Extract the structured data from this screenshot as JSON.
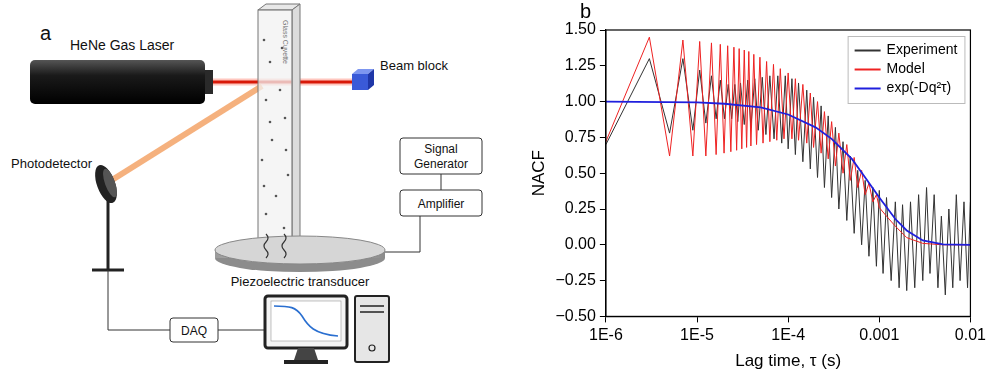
{
  "diagram": {
    "letter": "a",
    "laser": "HeNe Gas Laser",
    "beam_block": "Beam block",
    "cuvette": "Glass Cuvette",
    "detector": "Photodetector",
    "transducer": "Piezoelectric transducer",
    "signal_generator": "Signal Generator",
    "amplifier": "Amplifier",
    "daq": "DAQ"
  },
  "chart_data": {
    "type": "line",
    "panel_label": "b",
    "x_label": "Lag time, τ (s)",
    "y_label": "NACF",
    "log": "x",
    "grid": false,
    "legend": "upper right",
    "xlim": [
      1e-06,
      0.01
    ],
    "xticks": [
      {
        "value": 1e-06,
        "label": "1E-6"
      },
      {
        "value": 1e-05,
        "label": "1E-5"
      },
      {
        "value": 0.0001,
        "label": "1E-4"
      },
      0.001,
      0.01
    ],
    "ylim": [
      -0.5,
      1.5
    ],
    "yticks": [
      {
        "value": -0.5,
        "label": "−0.50"
      },
      {
        "value": -0.25,
        "label": "−0.25"
      },
      {
        "value": 0,
        "label": "0.00"
      },
      {
        "value": 0.25,
        "label": "0.25"
      },
      {
        "value": 0.5,
        "label": "0.50"
      },
      {
        "value": 0.75,
        "label": "0.75"
      },
      {
        "value": 1,
        "label": "1.00"
      },
      {
        "value": 1.25,
        "label": "1.25"
      },
      {
        "value": 1.5,
        "label": "1.50"
      }
    ],
    "series": [
      {
        "name": "Experiment",
        "color": "#333333",
        "x": [
          1e-06,
          3e-06,
          5e-06,
          7e-06,
          9e-06,
          1.07e-05,
          1.25e-05,
          1.44e-05,
          1.62e-05,
          1.8e-05,
          2e-05,
          2.2e-05,
          2.4e-05,
          2.6e-05,
          2.8e-05,
          3e-05,
          3.3e-05,
          3.6e-05,
          3.9e-05,
          4.3e-05,
          4.7e-05,
          5.2e-05,
          5.7e-05,
          6.3e-05,
          7e-05,
          7.7e-05,
          8.5e-05,
          9.3e-05,
          0.0001,
          0.00011,
          0.00012,
          0.00013,
          0.000145,
          0.00016,
          0.000175,
          0.00019,
          0.00021,
          0.00023,
          0.00025,
          0.000275,
          0.0003,
          0.00033,
          0.00036,
          0.0004,
          0.00044,
          0.00048,
          0.00053,
          0.00058,
          0.00064,
          0.0007,
          0.00077,
          0.00085,
          0.00093,
          0.001,
          0.0011,
          0.0012,
          0.00135,
          0.0015,
          0.00165,
          0.0018,
          0.002,
          0.0022,
          0.00245,
          0.0027,
          0.003,
          0.0033,
          0.0036,
          0.004,
          0.0044,
          0.0048,
          0.0053,
          0.0058,
          0.0064,
          0.007,
          0.0077,
          0.0085,
          0.0093,
          0.01
        ],
        "values": [
          0.7,
          1.3,
          0.78,
          1.3,
          0.8,
          1.22,
          0.85,
          1.18,
          0.88,
          1.15,
          0.88,
          1.12,
          0.88,
          1.12,
          0.86,
          1.13,
          0.84,
          1.15,
          0.82,
          1.16,
          0.8,
          1.17,
          0.77,
          1.18,
          0.74,
          1.18,
          0.71,
          1.18,
          0.67,
          1.16,
          0.63,
          1.13,
          0.58,
          1.08,
          0.53,
          1.03,
          0.47,
          0.97,
          0.4,
          0.9,
          0.33,
          0.82,
          0.25,
          0.72,
          0.17,
          0.62,
          0.08,
          0.52,
          0.0,
          0.45,
          -0.08,
          0.4,
          -0.15,
          0.38,
          -0.2,
          0.33,
          -0.25,
          0.3,
          -0.3,
          0.28,
          -0.32,
          0.3,
          -0.3,
          0.35,
          -0.25,
          0.4,
          -0.2,
          0.35,
          -0.3,
          0.2,
          -0.35,
          0.25,
          -0.3,
          0.35,
          -0.25,
          0.3,
          -0.3,
          0.3
        ]
      },
      {
        "name": "Model",
        "color": "#ee2222",
        "x": [
          1e-06,
          3e-06,
          5e-06,
          7e-06,
          9e-06,
          1.07e-05,
          1.25e-05,
          1.44e-05,
          1.62e-05,
          1.8e-05,
          1.98e-05,
          2.17e-05,
          2.35e-05,
          2.54e-05,
          2.72e-05,
          2.9e-05,
          3.1e-05,
          3.3e-05,
          3.5e-05,
          3.7e-05,
          3.9e-05,
          4.2e-05,
          4.5e-05,
          4.9e-05,
          5.3e-05,
          5.8e-05,
          6.3e-05,
          6.9e-05,
          7.5e-05,
          8.2e-05,
          9e-05,
          0.0001,
          0.00011,
          0.00012,
          0.00013,
          0.000145,
          0.00016,
          0.000175,
          0.00019,
          0.00021,
          0.00023,
          0.00025,
          0.000275,
          0.0003,
          0.00033,
          0.00036,
          0.0004,
          0.00044,
          0.00048,
          0.00053,
          0.00058,
          0.00064,
          0.0007,
          0.00077,
          0.00085,
          0.00093,
          0.001,
          0.0012,
          0.0015,
          0.002,
          0.003,
          0.005,
          0.01
        ],
        "values": [
          0.72,
          1.45,
          0.62,
          1.43,
          0.62,
          1.42,
          0.62,
          1.41,
          0.63,
          1.4,
          0.64,
          1.39,
          0.65,
          1.38,
          0.66,
          1.37,
          0.67,
          1.36,
          0.68,
          1.35,
          0.69,
          1.33,
          0.7,
          1.31,
          0.71,
          1.28,
          0.72,
          1.26,
          0.73,
          1.23,
          0.74,
          1.2,
          0.74,
          1.16,
          0.73,
          1.12,
          0.71,
          1.06,
          0.68,
          1.0,
          0.64,
          0.93,
          0.6,
          0.86,
          0.55,
          0.78,
          0.5,
          0.7,
          0.45,
          0.61,
          0.4,
          0.52,
          0.35,
          0.43,
          0.3,
          0.35,
          0.26,
          0.2,
          0.13,
          0.05,
          0.01,
          0,
          0
        ]
      },
      {
        "name": "exp(-Dq²τ)",
        "color": "#1f1fdd",
        "x": [
          1e-06,
          1e-05,
          2e-05,
          5e-05,
          0.0001,
          0.0002,
          0.0003,
          0.0005,
          0.0007,
          0.001,
          0.0015,
          0.002,
          0.003,
          0.005,
          0.01
        ],
        "values": [
          1,
          0.995,
          0.985,
          0.96,
          0.91,
          0.82,
          0.74,
          0.6,
          0.47,
          0.33,
          0.18,
          0.1,
          0.03,
          0.003,
          0
        ]
      }
    ]
  }
}
